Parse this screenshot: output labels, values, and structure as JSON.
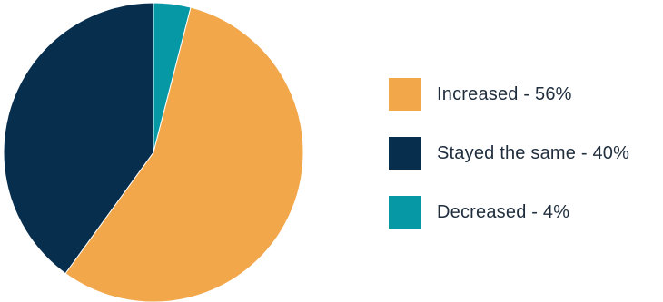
{
  "chart_data": {
    "type": "pie",
    "categories": [
      "Increased",
      "Stayed the same",
      "Decreased"
    ],
    "values": [
      56,
      40,
      4
    ],
    "colors": [
      "#F2A74B",
      "#082E4E",
      "#0698A4"
    ],
    "legend_labels": [
      "Increased - 56%",
      "Stayed the same - 40%",
      "Decreased - 4%"
    ],
    "title": "",
    "legend": "right"
  }
}
